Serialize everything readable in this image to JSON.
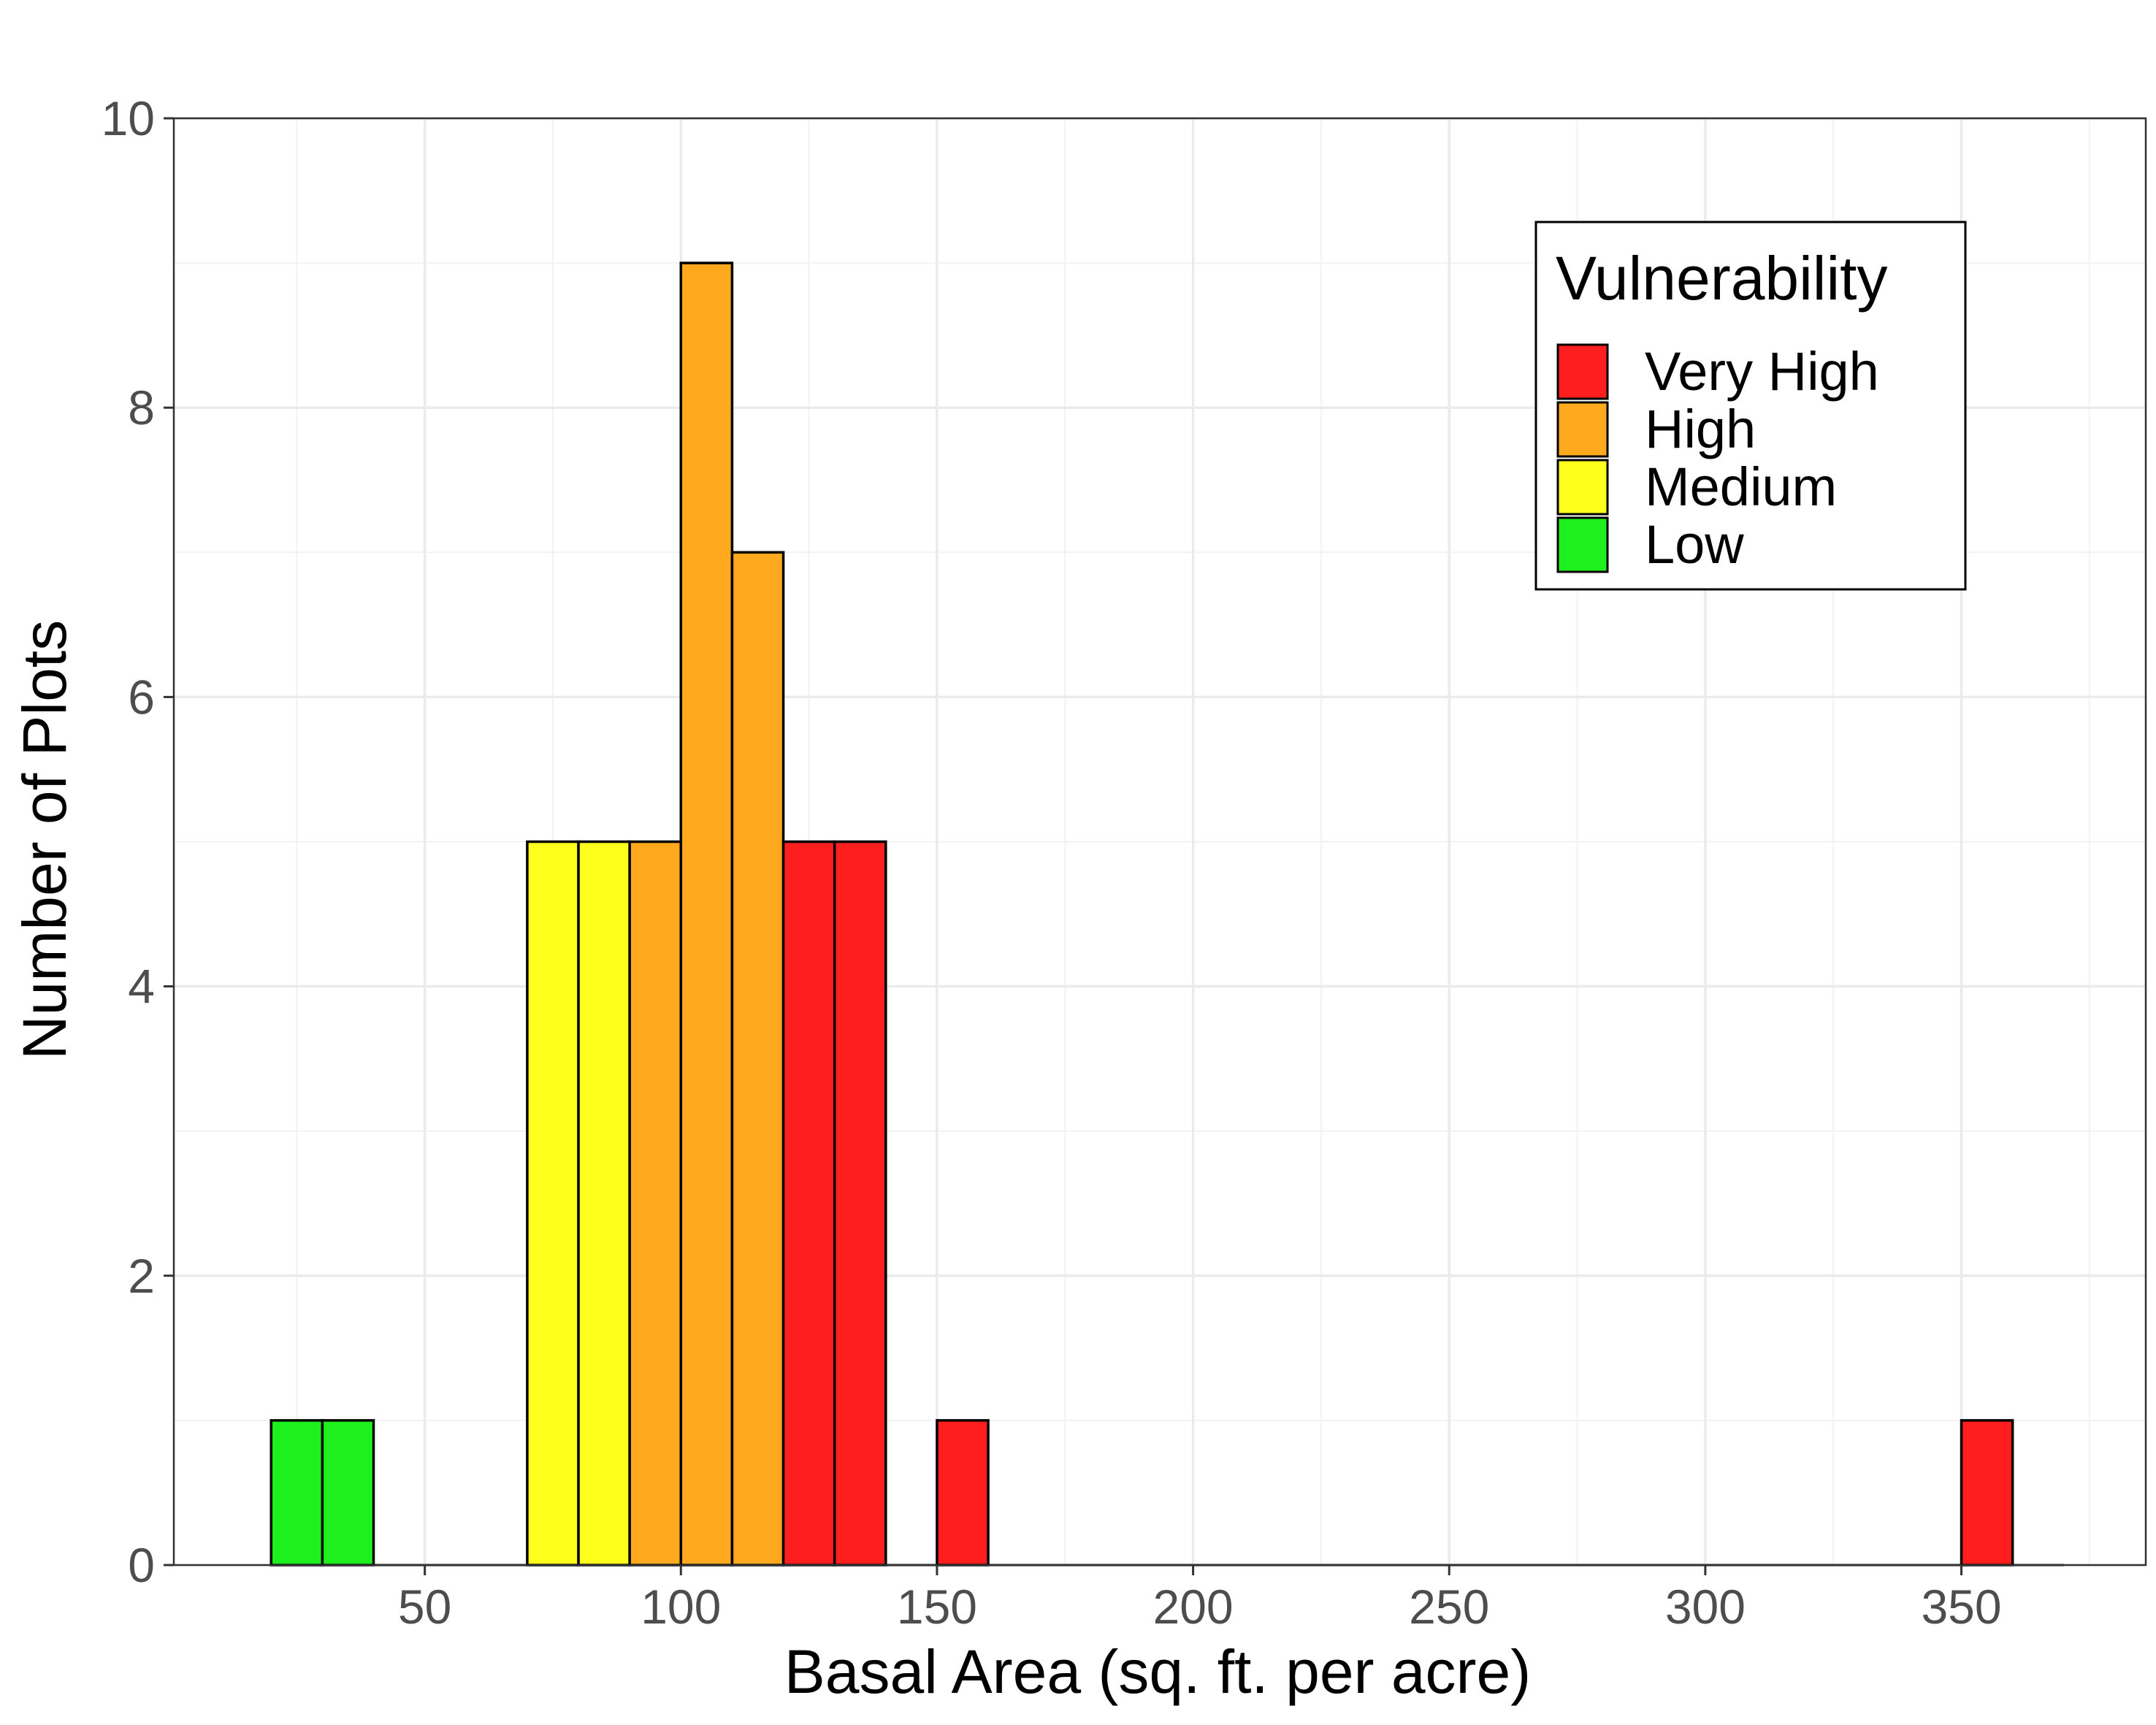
{
  "chart_data": {
    "type": "bar",
    "subtype": "histogram",
    "title": "",
    "xlabel": "Basal Area (sq. ft. per acre)",
    "ylabel": "Number of Plots",
    "xlim": [
      1,
      386
    ],
    "ylim": [
      0,
      10
    ],
    "x_ticks": [
      50,
      100,
      150,
      200,
      250,
      300,
      350
    ],
    "y_ticks": [
      0,
      2,
      4,
      6,
      8,
      10
    ],
    "bin_width": 10,
    "grid": true,
    "legend": {
      "title": "Vulnerability",
      "position": "top-right",
      "entries": [
        {
          "label": "Very High",
          "color": "#ff1e1e"
        },
        {
          "label": "High",
          "color": "#ffaa1e"
        },
        {
          "label": "Medium",
          "color": "#ffff1e"
        },
        {
          "label": "Low",
          "color": "#1ef01e"
        }
      ]
    },
    "bins": [
      {
        "x0": 20,
        "x1": 30,
        "count": 1,
        "category": "Low"
      },
      {
        "x0": 30,
        "x1": 40,
        "count": 1,
        "category": "Low"
      },
      {
        "x0": 70,
        "x1": 80,
        "count": 5,
        "category": "Medium"
      },
      {
        "x0": 80,
        "x1": 90,
        "count": 5,
        "category": "Medium"
      },
      {
        "x0": 90,
        "x1": 100,
        "count": 5,
        "category": "High"
      },
      {
        "x0": 100,
        "x1": 110,
        "count": 9,
        "category": "High"
      },
      {
        "x0": 110,
        "x1": 120,
        "count": 7,
        "category": "High"
      },
      {
        "x0": 120,
        "x1": 130,
        "count": 5,
        "category": "Very High"
      },
      {
        "x0": 130,
        "x1": 140,
        "count": 5,
        "category": "Very High"
      },
      {
        "x0": 150,
        "x1": 160,
        "count": 1,
        "category": "Very High"
      },
      {
        "x0": 350,
        "x1": 360,
        "count": 1,
        "category": "Very High"
      }
    ]
  }
}
